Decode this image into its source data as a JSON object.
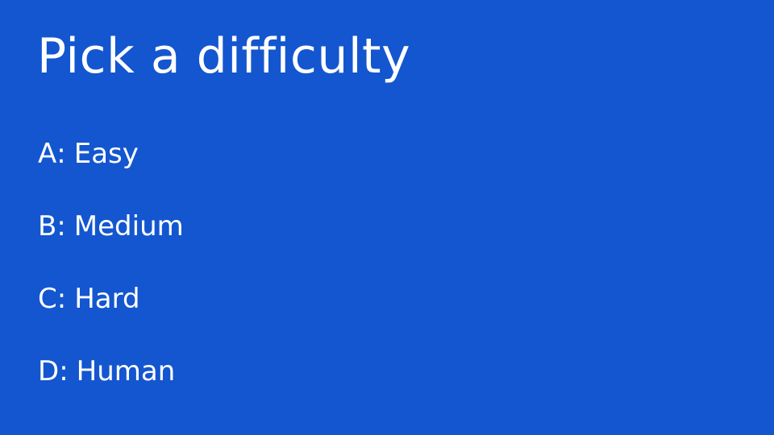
{
  "screen": {
    "title": "Pick a difficulty",
    "background_color": "#1356cf",
    "text_color": "#ffffff"
  },
  "options": [
    {
      "key": "A",
      "label": "Easy"
    },
    {
      "key": "B",
      "label": "Medium"
    },
    {
      "key": "C",
      "label": "Hard"
    },
    {
      "key": "D",
      "label": "Human"
    }
  ]
}
